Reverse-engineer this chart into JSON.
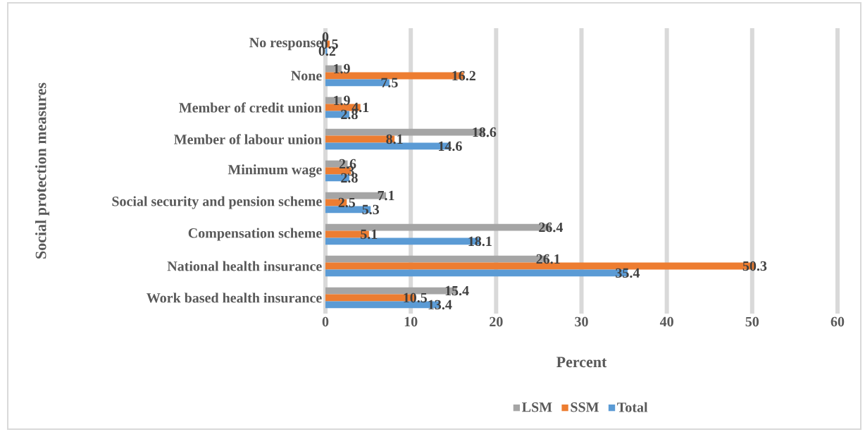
{
  "chart_data": {
    "type": "bar",
    "orientation": "horizontal",
    "xlabel": "Percent",
    "ylabel": "Social protection measures",
    "categories": [
      "No response",
      "None",
      "Member of credit union",
      "Member of labour union",
      "Minimum wage",
      "Social security and pension scheme",
      "Compensation scheme",
      "National health insurance",
      "Work based health insurance"
    ],
    "series": [
      {
        "name": "LSM",
        "color": "#a5a5a5",
        "values": [
          0,
          1.9,
          1.9,
          18.6,
          2.6,
          7.1,
          26.4,
          26.1,
          15.4
        ]
      },
      {
        "name": "SSM",
        "color": "#ed7d31",
        "values": [
          0.5,
          16.2,
          4.1,
          8.1,
          3,
          2.5,
          5.1,
          50.3,
          10.5
        ]
      },
      {
        "name": "Total",
        "color": "#5b9bd5",
        "values": [
          0.2,
          7.5,
          2.8,
          14.6,
          2.8,
          5.3,
          18.1,
          35.4,
          13.4
        ]
      }
    ],
    "xlim": [
      0,
      60
    ],
    "xticks": [
      0,
      10,
      20,
      30,
      40,
      50,
      60
    ],
    "grid": "x",
    "legend": "bottom",
    "data_labels": true
  }
}
